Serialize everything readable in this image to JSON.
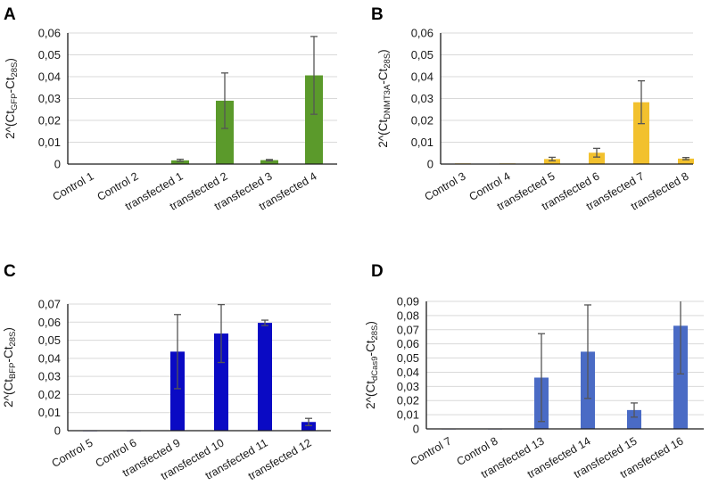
{
  "chart_data": [
    {
      "type": "bar",
      "panel": "A",
      "ylabel_parts": [
        {
          "t": "2^(Ct"
        },
        {
          "t": "GFP",
          "sub": true
        },
        {
          "t": "-Ct"
        },
        {
          "t": "28S",
          "sub": true
        },
        {
          "t": ")"
        }
      ],
      "ylim": [
        0,
        0.06
      ],
      "yticks": [
        0,
        0.01,
        0.02,
        0.03,
        0.04,
        0.05,
        0.06
      ],
      "ytick_labels": [
        "0",
        "0,01",
        "0,02",
        "0,03",
        "0,04",
        "0,05",
        "0,06"
      ],
      "grid": true,
      "color": "#5b9a2b",
      "categories": [
        "Control 1",
        "Control 2",
        "transfected 1",
        "transfected 2",
        "transfected 3",
        "transfected 4"
      ],
      "values": [
        0.0002,
        0.0002,
        0.0017,
        0.029,
        0.0018,
        0.0406
      ],
      "errors": [
        0,
        0,
        0.0005,
        0.0127,
        0.0003,
        0.0178
      ]
    },
    {
      "type": "bar",
      "panel": "B",
      "ylabel_parts": [
        {
          "t": "2^(Ct"
        },
        {
          "t": "DNMT3A",
          "sub": true
        },
        {
          "t": "-Ct"
        },
        {
          "t": "28S",
          "sub": true
        },
        {
          "t": ")"
        }
      ],
      "ylim": [
        0,
        0.06
      ],
      "yticks": [
        0,
        0.01,
        0.02,
        0.03,
        0.04,
        0.05,
        0.06
      ],
      "ytick_labels": [
        "0",
        "0,01",
        "0,02",
        "0,03",
        "0,04",
        "0,05",
        "0,06"
      ],
      "grid": true,
      "color": "#f2c12e",
      "categories": [
        "Control  3",
        "Control  4",
        "transfected 5",
        "transfected 6",
        "transfected 7",
        "transfected 8"
      ],
      "values": [
        0.0003,
        0.0003,
        0.0023,
        0.0052,
        0.0283,
        0.0025
      ],
      "errors": [
        0,
        0,
        0.0008,
        0.002,
        0.0098,
        0.0005
      ]
    },
    {
      "type": "bar",
      "panel": "C",
      "ylabel_parts": [
        {
          "t": "2^(Ct"
        },
        {
          "t": "BFP",
          "sub": true
        },
        {
          "t": "-Ct"
        },
        {
          "t": "28S",
          "sub": true
        },
        {
          "t": ")"
        }
      ],
      "ylim": [
        0,
        0.07
      ],
      "yticks": [
        0,
        0.01,
        0.02,
        0.03,
        0.04,
        0.05,
        0.06,
        0.07
      ],
      "ytick_labels": [
        "0",
        "0,01",
        "0,02",
        "0,03",
        "0,04",
        "0,05",
        "0,06",
        "0,07"
      ],
      "grid": true,
      "color": "#0a0ac4",
      "categories": [
        "Control  5",
        "Control  6",
        "transfected 9",
        "transfected 10",
        "transfected 11",
        "transfected 12"
      ],
      "values": [
        0,
        0,
        0.0437,
        0.0537,
        0.0596,
        0.0048
      ],
      "errors": [
        0,
        0,
        0.0205,
        0.016,
        0.0015,
        0.002
      ]
    },
    {
      "type": "bar",
      "panel": "D",
      "ylabel_parts": [
        {
          "t": "2^(Ct"
        },
        {
          "t": "dCas9",
          "sub": true
        },
        {
          "t": "-Ct"
        },
        {
          "t": "28S",
          "sub": true
        },
        {
          "t": ")"
        }
      ],
      "ylim": [
        0,
        0.09
      ],
      "yticks": [
        0,
        0.01,
        0.02,
        0.03,
        0.04,
        0.05,
        0.06,
        0.07,
        0.08,
        0.09
      ],
      "ytick_labels": [
        "0",
        "0,01",
        "0,02",
        "0,03",
        "0,04",
        "0,05",
        "0,06",
        "0,07",
        "0,08",
        "0,09"
      ],
      "grid": true,
      "color": "#4a6bc5",
      "categories": [
        "Control  7",
        "Control  8",
        "transfected 13",
        "transfected 14",
        "transfected 15",
        "transfected 16"
      ],
      "values": [
        0,
        0,
        0.0362,
        0.0545,
        0.0133,
        0.0728
      ],
      "errors": [
        0,
        0,
        0.031,
        0.033,
        0.005,
        0.034
      ]
    }
  ]
}
